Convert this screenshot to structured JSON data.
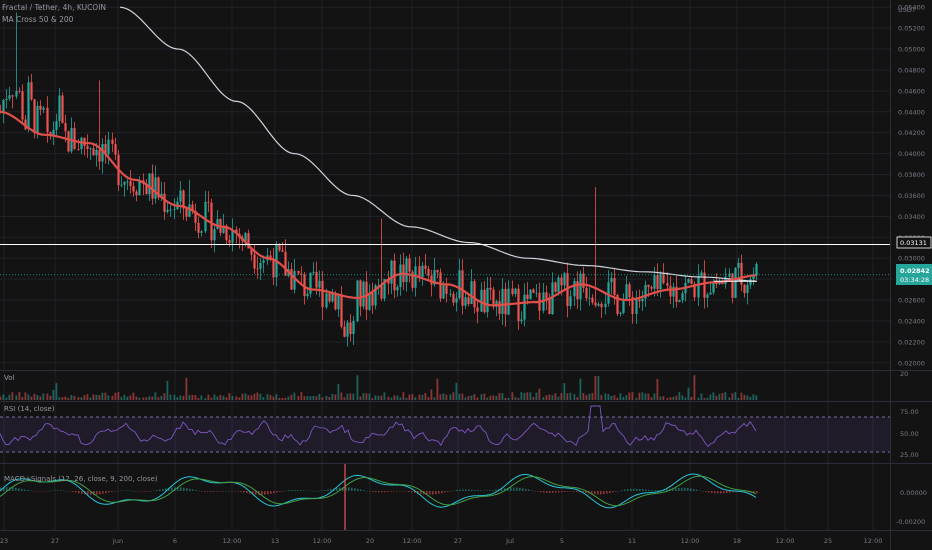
{
  "header": {
    "symbol": "Fractal / Tether, 4h, KUCOIN",
    "indicator": "MA Cross 50 & 200"
  },
  "price_axis": {
    "currency": "USDT",
    "ticks": [
      "0.05400",
      "0.05200",
      "0.05000",
      "0.04800",
      "0.04600",
      "0.04400",
      "0.04200",
      "0.04000",
      "0.03800",
      "0.03600",
      "0.03400",
      "0.03200",
      "0.03000",
      "0.02800",
      "0.02600",
      "0.02400",
      "0.02200",
      "0.02000"
    ],
    "level_label": "0.03131",
    "last_price": "0.02842",
    "countdown": "03:34:28"
  },
  "volume_pane": {
    "label": "Vol",
    "axis_tick": "20"
  },
  "rsi_pane": {
    "label": "RSI (14, close)",
    "ticks": [
      "75.00",
      "50.00",
      "25.00"
    ]
  },
  "macd_pane": {
    "label": "MACD+Signals (12, 26, close, 9, 200, close)",
    "ticks": [
      "0.00000",
      "-0.00200"
    ]
  },
  "time_axis": [
    "23",
    "27",
    "Jun",
    "6",
    "12:00",
    "13",
    "12:00",
    "20",
    "12:00",
    "27",
    "Jul",
    "5",
    "11",
    "12:00",
    "18",
    "12:00",
    "25",
    "12:00"
  ],
  "colors": {
    "background": "#131313",
    "up": "#26a69a",
    "down": "#ef5350",
    "ma50": "#e04f4a",
    "ma200": "#d1d4dc",
    "rsi": "#7e57c2",
    "macd": "#26c6da",
    "signal": "#43a047"
  },
  "chart_data": {
    "type": "candlestick",
    "title": "Fractal / Tether, 4h, KUCOIN",
    "ylabel": "USDT",
    "ylim": [
      0.0195,
      0.0545
    ],
    "series": [
      {
        "name": "MA 50",
        "values": [
          0.044,
          0.0418,
          0.041,
          0.0375,
          0.035,
          0.033,
          0.03,
          0.027,
          0.0262,
          0.0285,
          0.0275,
          0.0255,
          0.0258,
          0.0275,
          0.026,
          0.027,
          0.0277,
          0.0284
        ]
      },
      {
        "name": "MA 200",
        "values": [
          0.054,
          0.05,
          0.045,
          0.04,
          0.036,
          0.033,
          0.0315,
          0.03,
          0.0293,
          0.0287,
          0.0282,
          0.0278
        ]
      }
    ],
    "levels": [
      0.03131,
      0.02842
    ],
    "rsi_levels": [
      70,
      30
    ]
  }
}
